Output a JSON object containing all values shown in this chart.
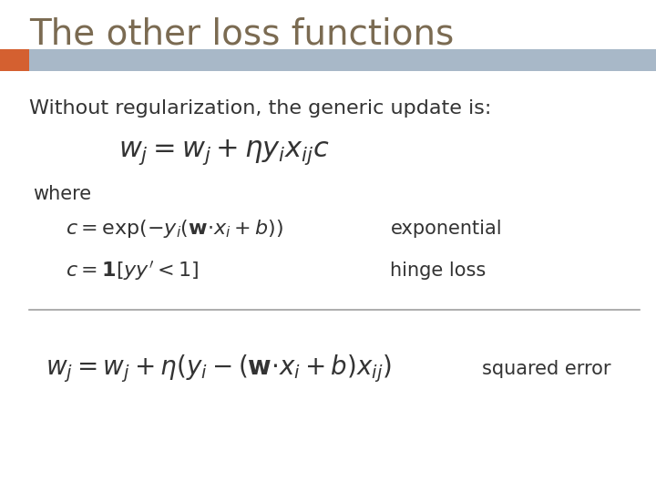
{
  "title": "The other loss functions",
  "title_color": "#7B6B52",
  "title_fontsize": 28,
  "background_color": "#FFFFFF",
  "header_bar_color": "#A8B8C8",
  "header_bar_orange_color": "#D46030",
  "text_color": "#333333",
  "subtitle": "Without regularization, the generic update is:",
  "subtitle_fontsize": 16,
  "eq_main_fontsize": 22,
  "where_text": "where",
  "where_fontsize": 15,
  "eq_exp_label": "exponential",
  "eq_hinge_label": "hinge loss",
  "eq_squared_label": "squared error",
  "eq_fontsize": 16,
  "label_fontsize": 15,
  "divider_color": "#A0A0A0"
}
